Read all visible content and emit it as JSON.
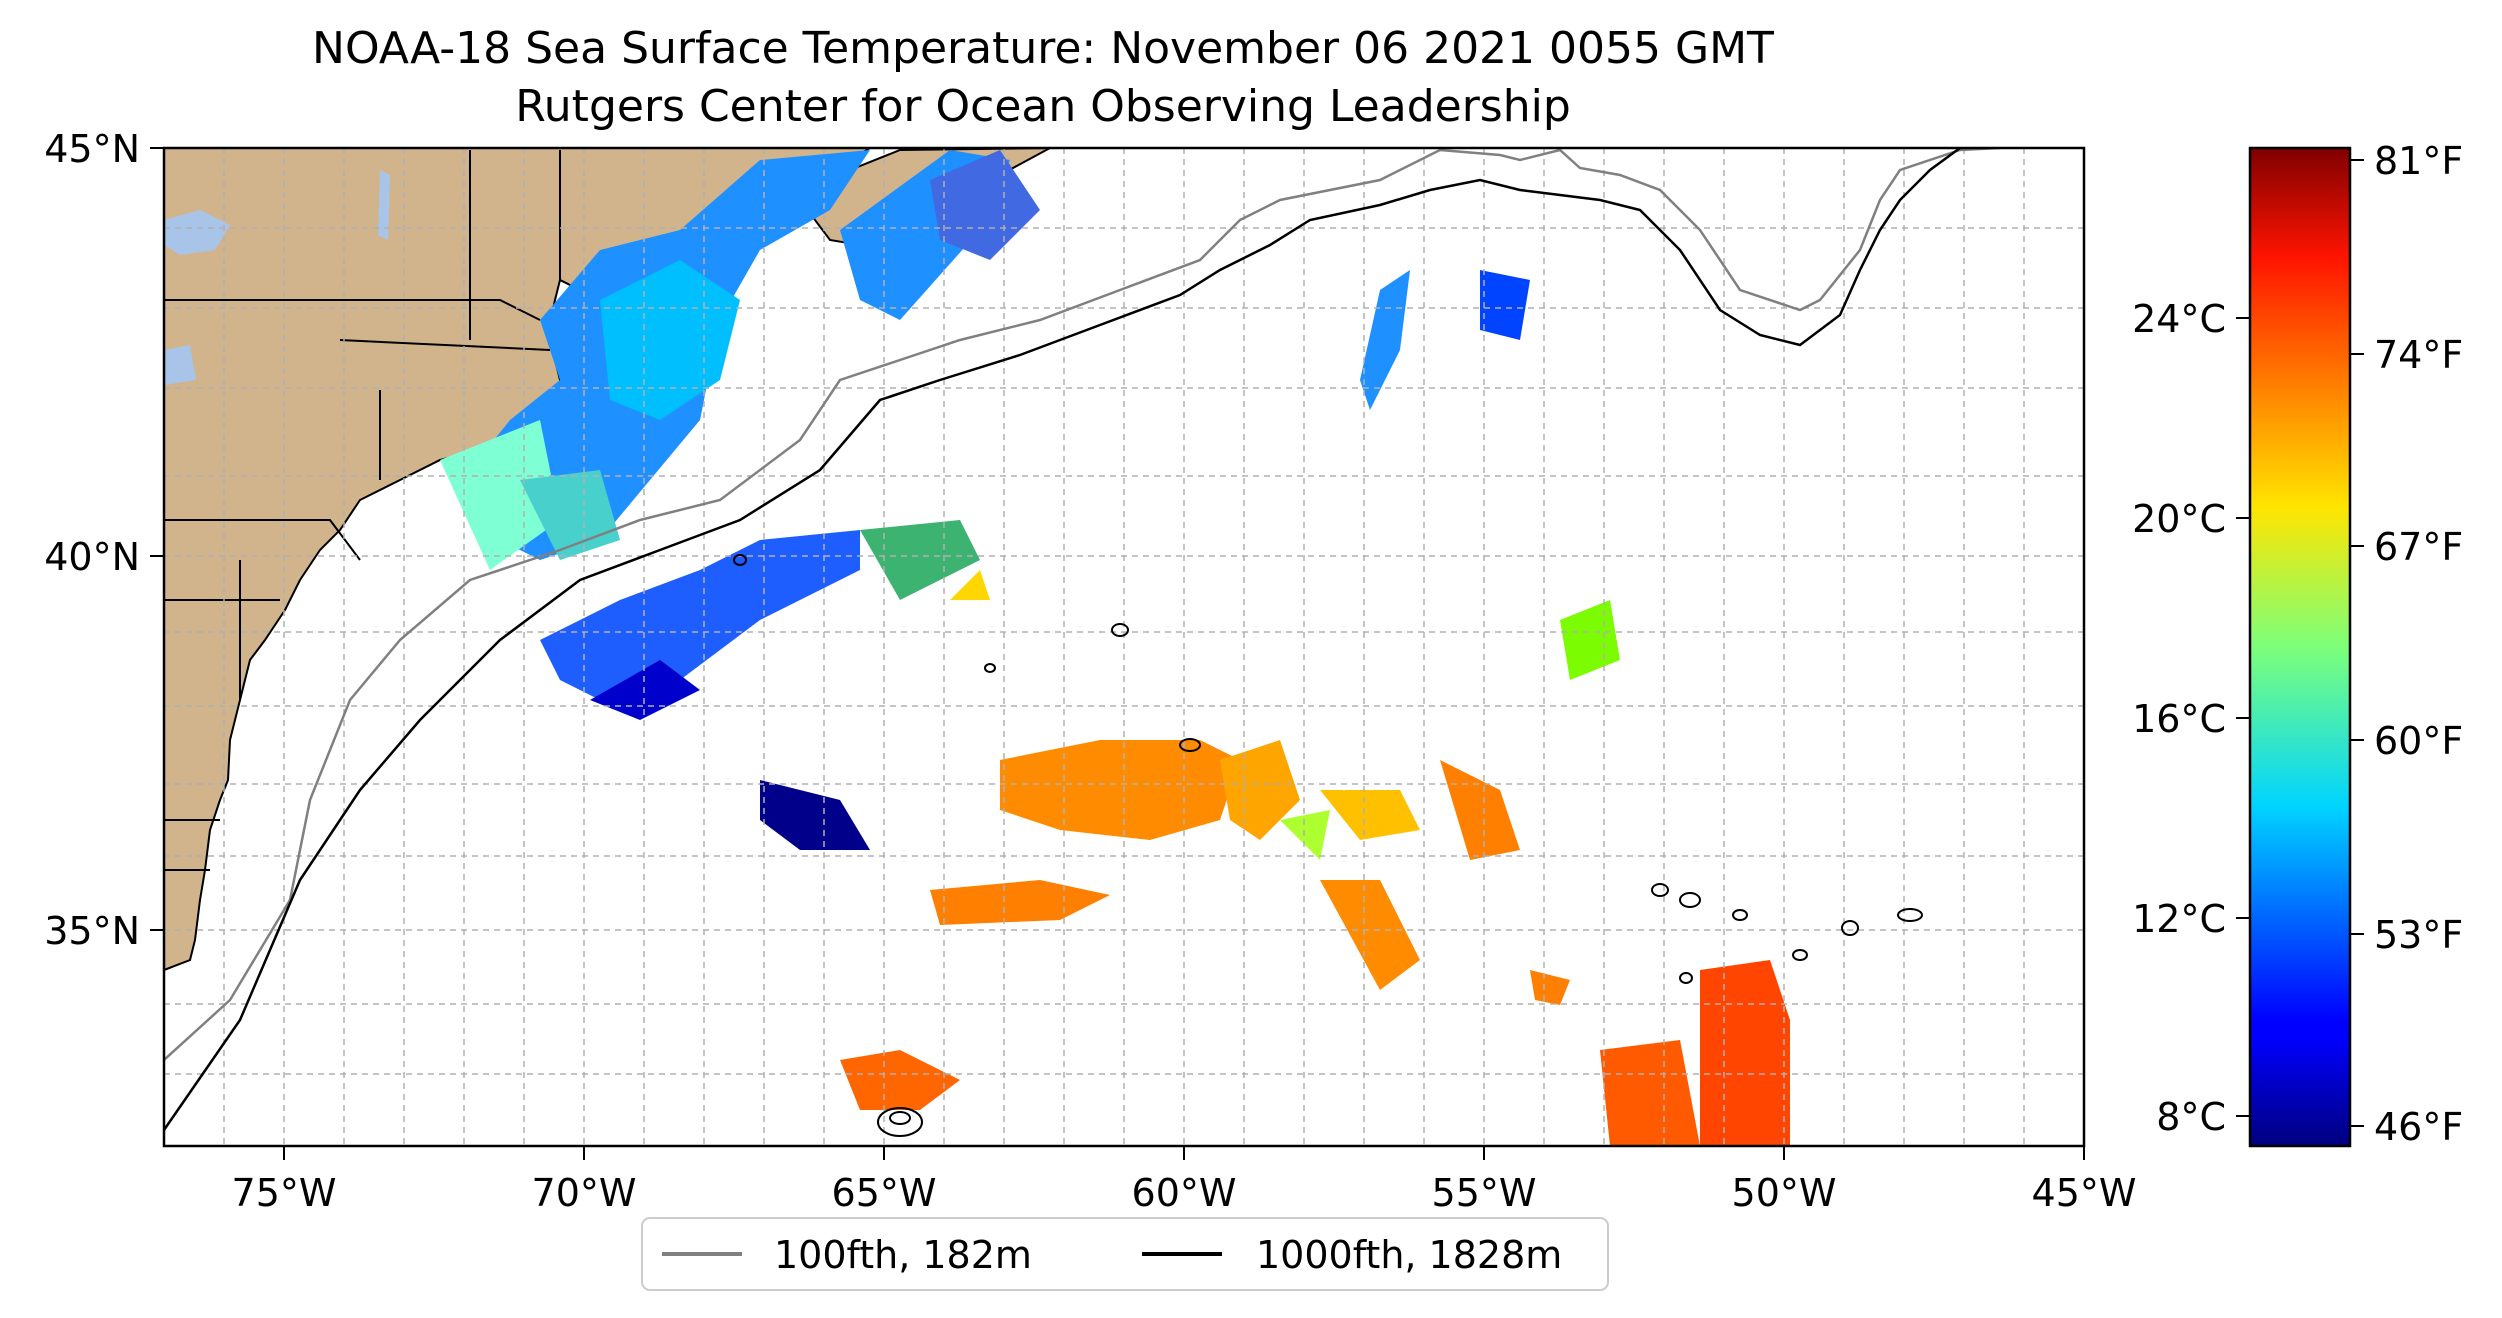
{
  "title": "NOAA-18 Sea Surface Temperature: November 06 2021 0055 GMT",
  "subtitle": "Rutgers Center for Ocean Observing Leadership",
  "map": {
    "lon_range": [
      -77,
      -45
    ],
    "lat_range": [
      32.5,
      45
    ],
    "lon_ticks": [
      "75°W",
      "70°W",
      "65°W",
      "60°W",
      "55°W",
      "50°W",
      "45°W"
    ],
    "lat_ticks": [
      "45°N",
      "40°N",
      "35°N"
    ],
    "land_color": "#d2b48c",
    "water_color": "#ffffff",
    "grid": true
  },
  "colorbar": {
    "colormap": "jet",
    "celsius_ticks": [
      "24°C",
      "20°C",
      "16°C",
      "12°C",
      "8°C"
    ],
    "fahrenheit_ticks": [
      "81°F",
      "74°F",
      "67°F",
      "60°F",
      "53°F",
      "46°F"
    ],
    "range_f": [
      45,
      82
    ]
  },
  "legend": {
    "items": [
      {
        "label": "100fth, 182m",
        "color": "#808080"
      },
      {
        "label": "1000fth, 1828m",
        "color": "#000000"
      }
    ]
  }
}
